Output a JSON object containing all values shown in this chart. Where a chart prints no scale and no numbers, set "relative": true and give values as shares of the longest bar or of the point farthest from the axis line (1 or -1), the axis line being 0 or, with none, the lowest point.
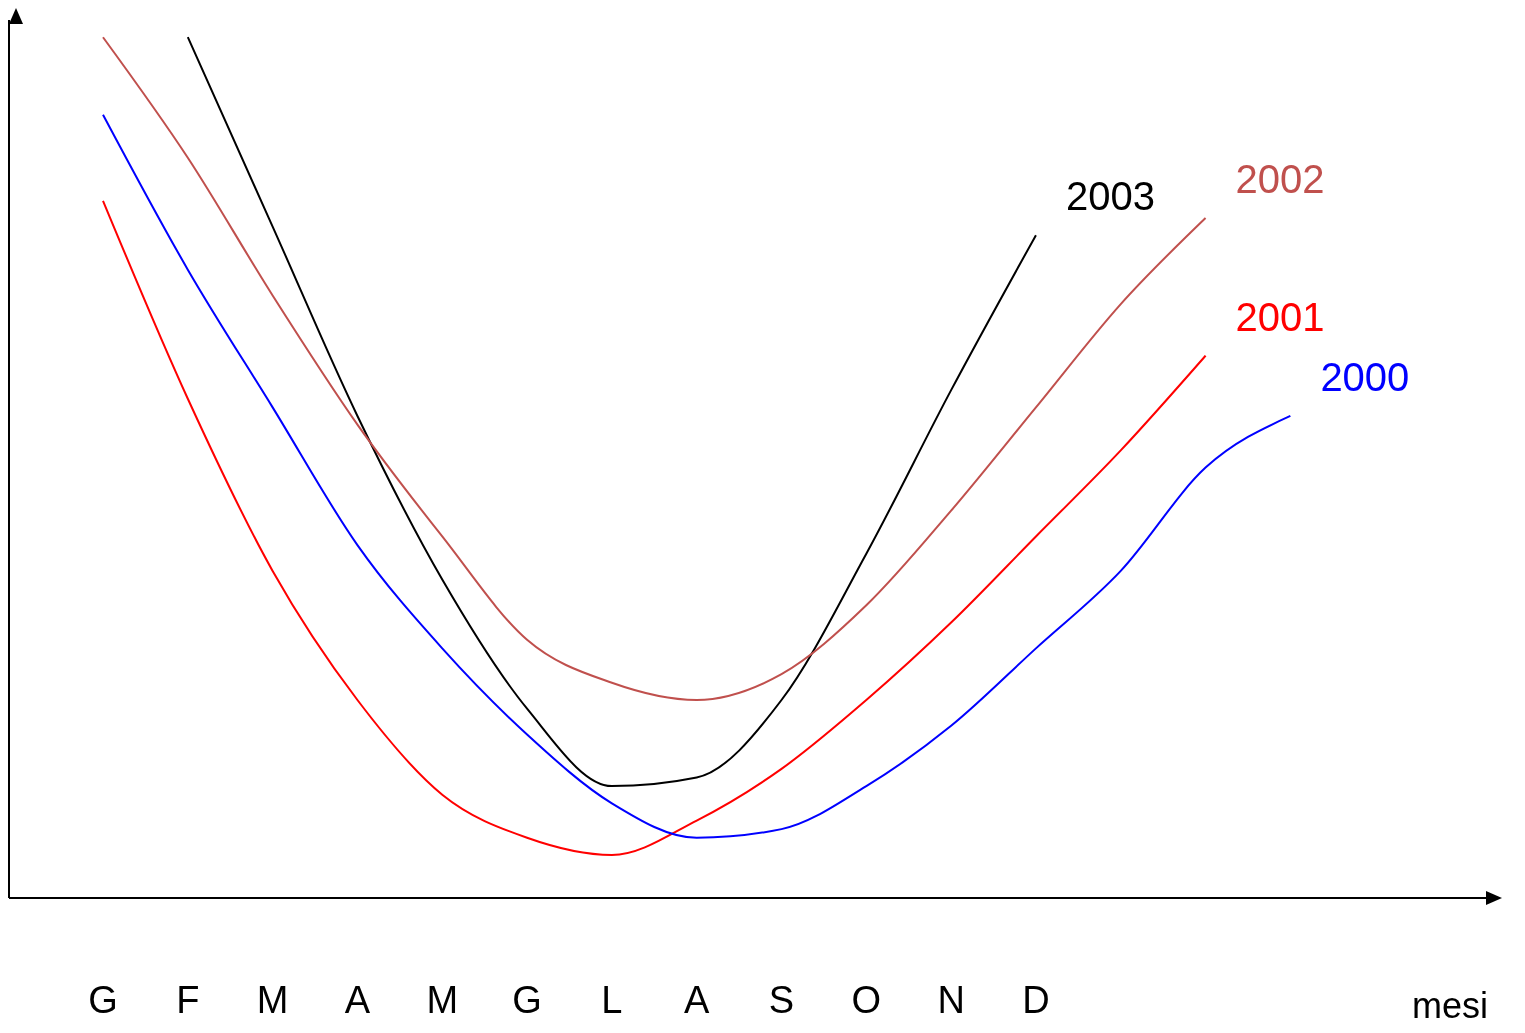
{
  "chart_data": {
    "type": "line",
    "relative": true,
    "xlabel": "mesi",
    "categories": [
      "G",
      "F",
      "M",
      "A",
      "M",
      "G",
      "L",
      "A",
      "S",
      "O",
      "N",
      "D",
      null,
      null,
      null,
      null,
      null
    ],
    "grid": false,
    "legend": false,
    "marker": "none",
    "line_style": "solid",
    "series": [
      {
        "name": "2003",
        "color": "#000000",
        "values": [
          null,
          1.0,
          0.78,
          0.56,
          0.37,
          0.22,
          0.13,
          0.14,
          0.23,
          0.4,
          0.59,
          0.77,
          null,
          null,
          null,
          null,
          null
        ]
      },
      {
        "name": "2002",
        "color": "#c0504d",
        "values": [
          1.0,
          0.86,
          0.7,
          0.55,
          0.42,
          0.3,
          0.25,
          0.23,
          0.26,
          0.34,
          0.45,
          0.57,
          0.69,
          0.79,
          null,
          null,
          null
        ]
      },
      {
        "name": "2001",
        "color": "#ff0000",
        "values": [
          0.81,
          0.58,
          0.38,
          0.23,
          0.12,
          0.07,
          0.05,
          0.09,
          0.15,
          0.23,
          0.32,
          0.42,
          0.52,
          0.63,
          null,
          null,
          null
        ]
      },
      {
        "name": "2000",
        "color": "#0000ff",
        "values": [
          0.91,
          0.73,
          0.57,
          0.41,
          0.29,
          0.19,
          0.11,
          0.07,
          0.08,
          0.13,
          0.2,
          0.29,
          0.38,
          0.5,
          0.56,
          null,
          null
        ]
      }
    ]
  }
}
